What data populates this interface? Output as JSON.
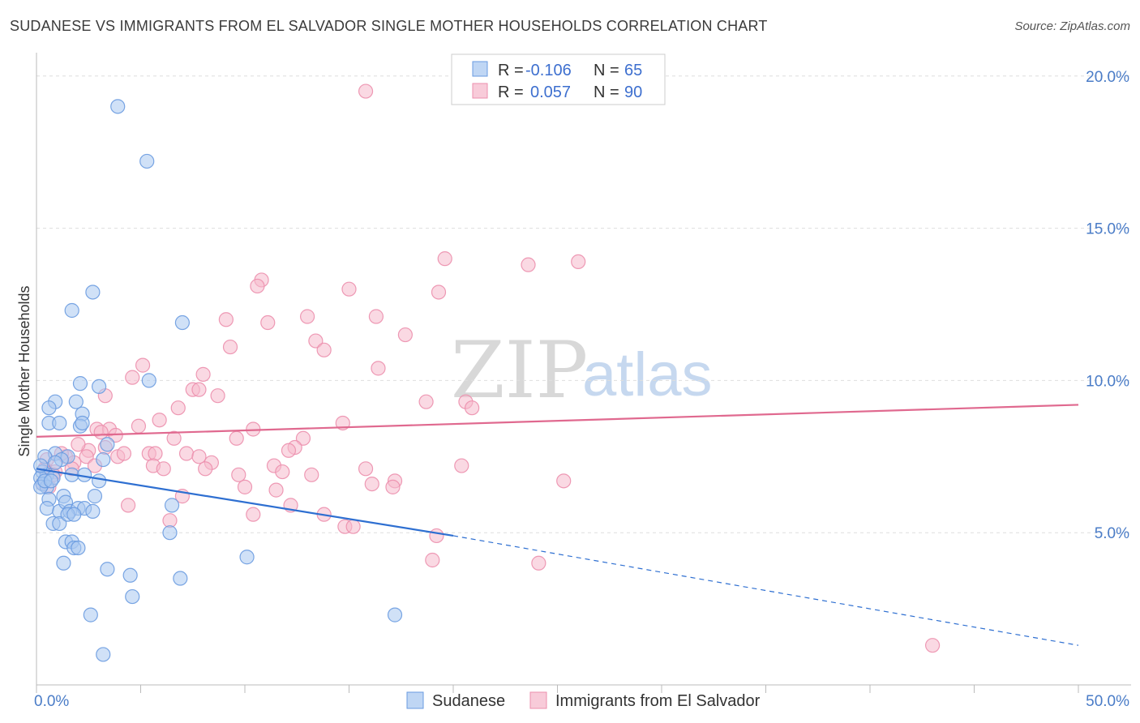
{
  "title": "SUDANESE VS IMMIGRANTS FROM EL SALVADOR SINGLE MOTHER HOUSEHOLDS CORRELATION CHART",
  "source": "Source: ZipAtlas.com",
  "watermark": {
    "left": "ZIP",
    "right": "atlas"
  },
  "colors": {
    "blue_fill": "#a9c8f0",
    "blue_stroke": "#6a9be0",
    "blue_line": "#2e6fd1",
    "pink_fill": "#f6b9cc",
    "pink_stroke": "#ec8fad",
    "pink_line": "#e0698f",
    "grid": "#dedede",
    "axis": "#bbbbbb"
  },
  "legend": {
    "rows": [
      {
        "r_label": "R =",
        "r_value": "-0.106",
        "n_label": "N =",
        "n_value": "65"
      },
      {
        "r_label": "R =",
        "r_value": "0.057",
        "n_label": "N =",
        "n_value": "90"
      }
    ]
  },
  "chart_data": {
    "type": "scatter",
    "xlabel": "",
    "ylabel": "Single Mother Households",
    "xlim": [
      0,
      50
    ],
    "ylim": [
      0,
      20.5
    ],
    "x_tick_labels": [
      "0.0%",
      "50.0%"
    ],
    "y_ticks": [
      5,
      10,
      15,
      20
    ],
    "y_tick_labels": [
      "5.0%",
      "10.0%",
      "15.0%",
      "20.0%"
    ],
    "grid": "horizontal dashed",
    "legend_position": "top-center",
    "series": [
      {
        "name": "Sudanese",
        "color": "#a9c8f0",
        "trend": {
          "x": [
            0,
            20,
            50
          ],
          "y": [
            7.1,
            4.9,
            1.3
          ],
          "solid_until": 20
        },
        "points": [
          [
            3.9,
            19.0
          ],
          [
            5.3,
            17.2
          ],
          [
            2.7,
            12.9
          ],
          [
            1.7,
            12.3
          ],
          [
            7.0,
            11.9
          ],
          [
            2.1,
            9.9
          ],
          [
            3.0,
            9.8
          ],
          [
            5.4,
            10.0
          ],
          [
            0.9,
            9.3
          ],
          [
            1.9,
            9.3
          ],
          [
            0.6,
            9.1
          ],
          [
            2.2,
            8.9
          ],
          [
            0.6,
            8.6
          ],
          [
            1.1,
            8.6
          ],
          [
            2.1,
            8.5
          ],
          [
            2.2,
            8.6
          ],
          [
            3.4,
            7.9
          ],
          [
            0.9,
            7.6
          ],
          [
            1.5,
            7.5
          ],
          [
            3.2,
            7.4
          ],
          [
            0.4,
            7.5
          ],
          [
            0.3,
            7.0
          ],
          [
            0.5,
            6.9
          ],
          [
            0.2,
            6.8
          ],
          [
            0.8,
            6.8
          ],
          [
            1.7,
            6.9
          ],
          [
            2.3,
            6.9
          ],
          [
            3.0,
            6.7
          ],
          [
            0.3,
            6.6
          ],
          [
            0.5,
            6.5
          ],
          [
            0.2,
            6.5
          ],
          [
            0.6,
            6.1
          ],
          [
            1.3,
            6.2
          ],
          [
            2.8,
            6.2
          ],
          [
            0.5,
            5.8
          ],
          [
            1.1,
            5.7
          ],
          [
            1.4,
            6.0
          ],
          [
            1.6,
            5.7
          ],
          [
            2.0,
            5.8
          ],
          [
            2.3,
            5.8
          ],
          [
            2.7,
            5.7
          ],
          [
            6.5,
            5.9
          ],
          [
            0.8,
            5.3
          ],
          [
            1.1,
            5.3
          ],
          [
            1.5,
            5.6
          ],
          [
            1.8,
            5.6
          ],
          [
            6.4,
            5.0
          ],
          [
            1.4,
            4.7
          ],
          [
            1.7,
            4.7
          ],
          [
            1.8,
            4.5
          ],
          [
            2.0,
            4.5
          ],
          [
            1.3,
            4.0
          ],
          [
            3.4,
            3.8
          ],
          [
            4.5,
            3.6
          ],
          [
            6.9,
            3.5
          ],
          [
            10.1,
            4.2
          ],
          [
            4.6,
            2.9
          ],
          [
            2.6,
            2.3
          ],
          [
            17.2,
            2.3
          ],
          [
            3.2,
            1.0
          ],
          [
            0.2,
            7.2
          ],
          [
            0.4,
            6.7
          ],
          [
            0.7,
            6.7
          ],
          [
            1.2,
            7.4
          ],
          [
            0.9,
            7.3
          ]
        ]
      },
      {
        "name": "Immigrants from El Salvador",
        "color": "#f6b9cc",
        "trend": {
          "x": [
            0,
            50
          ],
          "y": [
            8.15,
            9.2
          ]
        },
        "points": [
          [
            15.8,
            19.5
          ],
          [
            19.6,
            14.0
          ],
          [
            23.6,
            13.8
          ],
          [
            26.0,
            13.9
          ],
          [
            10.8,
            13.3
          ],
          [
            10.6,
            13.1
          ],
          [
            15.0,
            13.0
          ],
          [
            19.3,
            12.9
          ],
          [
            13.0,
            12.1
          ],
          [
            16.3,
            12.1
          ],
          [
            9.1,
            12.0
          ],
          [
            11.1,
            11.9
          ],
          [
            17.7,
            11.5
          ],
          [
            13.4,
            11.3
          ],
          [
            9.3,
            11.1
          ],
          [
            13.8,
            11.0
          ],
          [
            5.1,
            10.5
          ],
          [
            16.4,
            10.4
          ],
          [
            4.6,
            10.1
          ],
          [
            8.0,
            10.2
          ],
          [
            7.5,
            9.7
          ],
          [
            7.8,
            9.7
          ],
          [
            3.3,
            9.5
          ],
          [
            8.7,
            9.5
          ],
          [
            18.7,
            9.3
          ],
          [
            20.6,
            9.3
          ],
          [
            20.9,
            9.1
          ],
          [
            6.8,
            9.1
          ],
          [
            5.9,
            8.7
          ],
          [
            14.7,
            8.6
          ],
          [
            2.9,
            8.4
          ],
          [
            3.5,
            8.4
          ],
          [
            4.9,
            8.5
          ],
          [
            10.4,
            8.4
          ],
          [
            3.1,
            8.3
          ],
          [
            3.8,
            8.2
          ],
          [
            6.6,
            8.1
          ],
          [
            9.6,
            8.1
          ],
          [
            12.8,
            8.1
          ],
          [
            12.4,
            7.8
          ],
          [
            12.1,
            7.7
          ],
          [
            2.5,
            7.7
          ],
          [
            1.4,
            7.5
          ],
          [
            2.4,
            7.5
          ],
          [
            3.9,
            7.5
          ],
          [
            4.2,
            7.6
          ],
          [
            5.4,
            7.6
          ],
          [
            5.7,
            7.6
          ],
          [
            7.2,
            7.6
          ],
          [
            7.8,
            7.5
          ],
          [
            8.4,
            7.3
          ],
          [
            5.6,
            7.2
          ],
          [
            6.1,
            7.1
          ],
          [
            8.1,
            7.1
          ],
          [
            11.4,
            7.2
          ],
          [
            11.8,
            7.0
          ],
          [
            15.8,
            7.1
          ],
          [
            20.4,
            7.2
          ],
          [
            0.4,
            7.1
          ],
          [
            0.9,
            7.0
          ],
          [
            1.8,
            7.3
          ],
          [
            2.8,
            7.2
          ],
          [
            9.7,
            6.9
          ],
          [
            13.2,
            6.9
          ],
          [
            17.2,
            6.7
          ],
          [
            17.1,
            6.5
          ],
          [
            16.1,
            6.6
          ],
          [
            25.3,
            6.7
          ],
          [
            10.0,
            6.5
          ],
          [
            11.5,
            6.4
          ],
          [
            0.3,
            6.6
          ],
          [
            0.6,
            6.5
          ],
          [
            7.0,
            6.2
          ],
          [
            4.4,
            5.9
          ],
          [
            12.2,
            5.9
          ],
          [
            10.4,
            5.6
          ],
          [
            13.8,
            5.6
          ],
          [
            14.8,
            5.2
          ],
          [
            15.2,
            5.2
          ],
          [
            6.4,
            5.4
          ],
          [
            19.2,
            4.9
          ],
          [
            19.0,
            4.1
          ],
          [
            24.1,
            4.0
          ],
          [
            43.0,
            1.3
          ],
          [
            1.2,
            7.6
          ],
          [
            1.7,
            7.1
          ],
          [
            0.5,
            7.4
          ],
          [
            2.0,
            7.9
          ],
          [
            3.3,
            7.8
          ],
          [
            0.8,
            6.9
          ]
        ]
      }
    ]
  }
}
